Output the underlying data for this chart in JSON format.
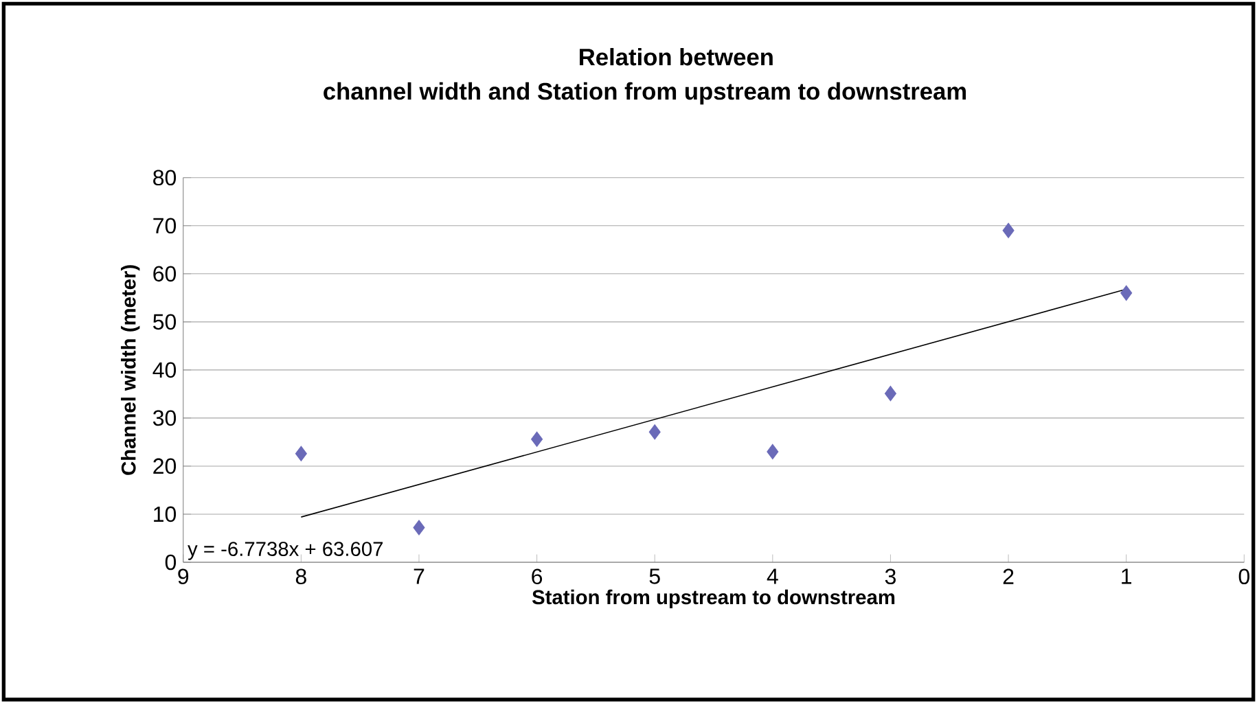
{
  "chart_data": {
    "type": "scatter",
    "title": "Relation between",
    "subtitle": "channel width and  Station from upstream to downstream",
    "xlabel": "Station from  upstream to downstream",
    "ylabel": "Channel width (meter)",
    "xlim": [
      9,
      0
    ],
    "xticks": [
      9,
      8,
      7,
      6,
      5,
      4,
      3,
      2,
      1,
      0
    ],
    "ylim": [
      0,
      80
    ],
    "yticks": [
      0,
      10,
      20,
      30,
      40,
      50,
      60,
      70,
      80
    ],
    "grid": "y",
    "marker": "diamond",
    "annotations": [
      "y = -6.7738x + 63.607"
    ],
    "series": [
      {
        "color": "#6a6ab8",
        "x": [
          8,
          7,
          6,
          5,
          4,
          3,
          2,
          1
        ],
        "values": [
          22.6,
          7.2,
          25.6,
          27.1,
          23,
          35.1,
          69,
          56
        ]
      },
      {
        "type": "line",
        "color": "#000000",
        "marker": "none",
        "x": [
          8,
          1
        ],
        "values": [
          9.4,
          56.8
        ]
      }
    ]
  }
}
